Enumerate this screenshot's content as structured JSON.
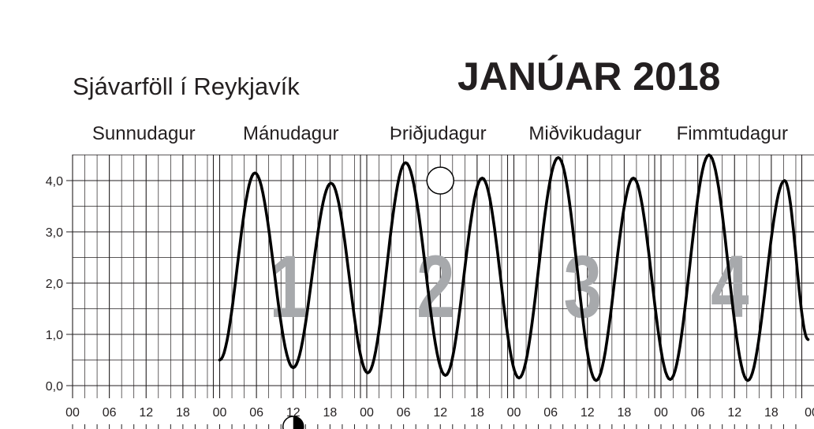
{
  "header": {
    "subtitle": "Sjávarföll í Reykjavík",
    "title": "JANÚAR 2018"
  },
  "chart_data": {
    "type": "line",
    "title": "JANÚAR 2018",
    "subtitle": "Sjávarföll í Reykjavík",
    "xlabel": "",
    "ylabel": "",
    "ylim": [
      0,
      4.5
    ],
    "y_ticks": [
      "0,0",
      "1,0",
      "2,0",
      "3,0",
      "4,0"
    ],
    "hour_ticks": [
      "00",
      "06",
      "12",
      "18"
    ],
    "days": [
      {
        "name": "Sunnudagur",
        "date": ""
      },
      {
        "name": "Mánudagur",
        "date": "1"
      },
      {
        "name": "Þriðjudagur",
        "date": "2"
      },
      {
        "name": "Miðvikudagur",
        "date": "3"
      },
      {
        "name": "Fimmtudagur",
        "date": "4"
      }
    ],
    "series": [
      {
        "x": [
          "Mánudagur 00:00",
          "Mánudagur 05:45",
          "Mánudagur 12:00",
          "Mánudagur 18:10",
          "Þriðjudagur 00:10",
          "Þriðjudagur 06:20",
          "Þriðjudagur 12:50",
          "Þriðjudagur 18:50",
          "Miðvikudagur 00:50",
          "Miðvikudagur 07:15",
          "Miðvikudagur 13:25",
          "Miðvikudagur 19:30",
          "Fimmtudagur 01:30",
          "Fimmtudagur 07:50",
          "Fimmtudagur 14:10",
          "Fimmtudagur 20:10",
          "Fimmtudagur 24:00"
        ],
        "y": [
          0.5,
          4.15,
          0.35,
          3.95,
          0.25,
          4.35,
          0.2,
          4.05,
          0.15,
          4.45,
          0.1,
          4.05,
          0.12,
          4.5,
          0.1,
          4.0,
          0.9
        ]
      }
    ],
    "moon_phases": [
      {
        "day": "Þriðjudagur",
        "hour": 12,
        "level": 4.0,
        "phase": "full-moon"
      },
      {
        "day": "Mánudagur",
        "hour": 12,
        "level": -0.8,
        "phase": "last-quarter"
      }
    ],
    "grid": true,
    "colors": {
      "line": "#000000",
      "grid": "#231f20",
      "date_numeral": "#a7a9ac"
    }
  }
}
